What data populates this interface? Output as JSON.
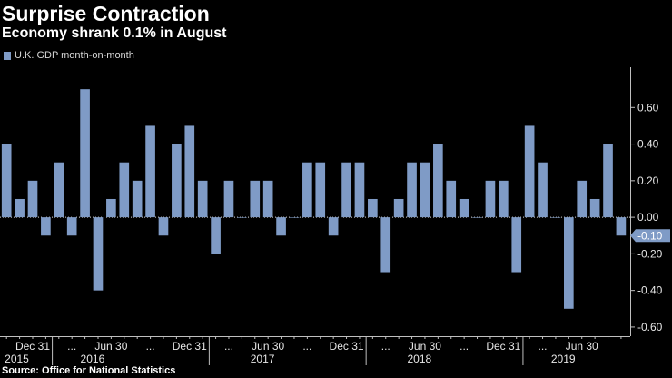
{
  "header": {
    "title": "Surprise Contraction",
    "subtitle": "Economy shrank 0.1% in August",
    "legend_label": "U.K. GDP month-on-month",
    "source": "Source: Office for National Statistics"
  },
  "colors": {
    "bar": "#7f9bc6",
    "axis": "#bfbfbf",
    "gridline": "#ffffff",
    "background": "#000000"
  },
  "chart_data": {
    "type": "bar",
    "title": "Surprise Contraction",
    "subtitle": "Economy shrank 0.1% in August",
    "series": [
      {
        "name": "U.K. GDP month-on-month",
        "values": [
          0.4,
          0.1,
          0.2,
          -0.1,
          0.3,
          -0.1,
          0.7,
          -0.4,
          0.1,
          0.3,
          0.2,
          0.5,
          -0.1,
          0.4,
          0.5,
          0.2,
          -0.2,
          0.2,
          0.0,
          0.2,
          0.2,
          -0.1,
          0.0,
          0.3,
          0.3,
          -0.1,
          0.3,
          0.3,
          0.1,
          -0.3,
          0.1,
          0.3,
          0.3,
          0.4,
          0.2,
          0.1,
          0.0,
          0.2,
          0.2,
          -0.3,
          0.5,
          0.3,
          0.0,
          -0.5,
          0.2,
          0.1,
          0.4,
          -0.1
        ]
      }
    ],
    "ylim": [
      -0.65,
      0.82
    ],
    "yticks": [
      -0.6,
      -0.4,
      -0.2,
      0.0,
      0.2,
      0.4,
      0.6
    ],
    "ytick_labels": [
      "-0.60",
      "-0.40",
      "-0.20",
      "0.00",
      "0.20",
      "0.40",
      "0.60"
    ],
    "x_tick_labels": [
      {
        "index": 2,
        "label": "Dec 31"
      },
      {
        "index": 5,
        "label": "..."
      },
      {
        "index": 8,
        "label": "Jun 30"
      },
      {
        "index": 11,
        "label": "..."
      },
      {
        "index": 14,
        "label": "Dec 31"
      },
      {
        "index": 17,
        "label": "..."
      },
      {
        "index": 20,
        "label": "Jun 30"
      },
      {
        "index": 23,
        "label": "..."
      },
      {
        "index": 26,
        "label": "Dec 31"
      },
      {
        "index": 29,
        "label": "..."
      },
      {
        "index": 32,
        "label": "Jun 30"
      },
      {
        "index": 35,
        "label": "..."
      },
      {
        "index": 38,
        "label": "Dec 31"
      },
      {
        "index": 41,
        "label": "..."
      },
      {
        "index": 44,
        "label": "Jun 30"
      }
    ],
    "year_labels": [
      {
        "index": 0,
        "label": "2015"
      },
      {
        "index": 6,
        "label": "2016"
      },
      {
        "index": 19,
        "label": "2017"
      },
      {
        "index": 31,
        "label": "2018"
      },
      {
        "index": 42,
        "label": "2019"
      }
    ],
    "year_divider_indices": [
      3,
      15,
      27,
      39
    ],
    "last_value_label": "-0.10",
    "xlabel": "",
    "ylabel": ""
  }
}
